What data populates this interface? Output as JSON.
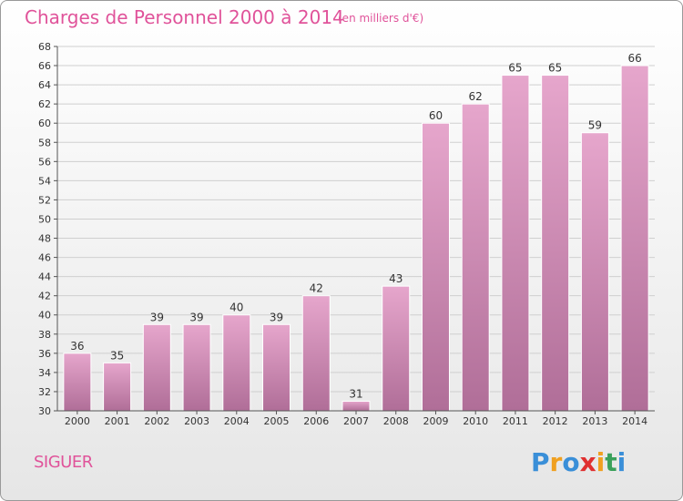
{
  "header": {
    "title": "Charges de Personnel 2000 à 2014",
    "unit_note": "(en milliers d'€)"
  },
  "footer": {
    "commune": "SIGUER",
    "brand_letters": [
      "P",
      "r",
      "o",
      "x",
      "i",
      "t",
      "i"
    ],
    "brand_colors": [
      "#3a8fd8",
      "#f0a020",
      "#3a8fd8",
      "#e03030",
      "#f0a020",
      "#3aa05a",
      "#3a8fd8"
    ]
  },
  "colors": {
    "accent": "#e0539a",
    "bar_top": "#e6a6cc",
    "bar_bottom": "#b06e98"
  },
  "chart_data": {
    "type": "bar",
    "title": "Charges de Personnel 2000 à 2014",
    "subtitle": "(en milliers d'€)",
    "categories": [
      "2000",
      "2001",
      "2002",
      "2003",
      "2004",
      "2005",
      "2006",
      "2007",
      "2008",
      "2009",
      "2010",
      "2011",
      "2012",
      "2013",
      "2014"
    ],
    "values": [
      36,
      35,
      39,
      39,
      40,
      39,
      42,
      31,
      43,
      60,
      62,
      65,
      65,
      59,
      66
    ],
    "ylim": [
      30,
      68
    ],
    "ytick_step": 2,
    "grid": true,
    "xlabel": "",
    "ylabel": ""
  }
}
